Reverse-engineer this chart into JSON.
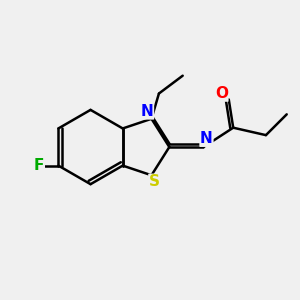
{
  "background_color": "#f0f0f0",
  "bond_color": "#000000",
  "atom_colors": {
    "N": "#0000ff",
    "S": "#cccc00",
    "O": "#ff0000",
    "F": "#00aa00",
    "C": "#000000"
  },
  "figsize": [
    3.0,
    3.0
  ],
  "dpi": 100
}
